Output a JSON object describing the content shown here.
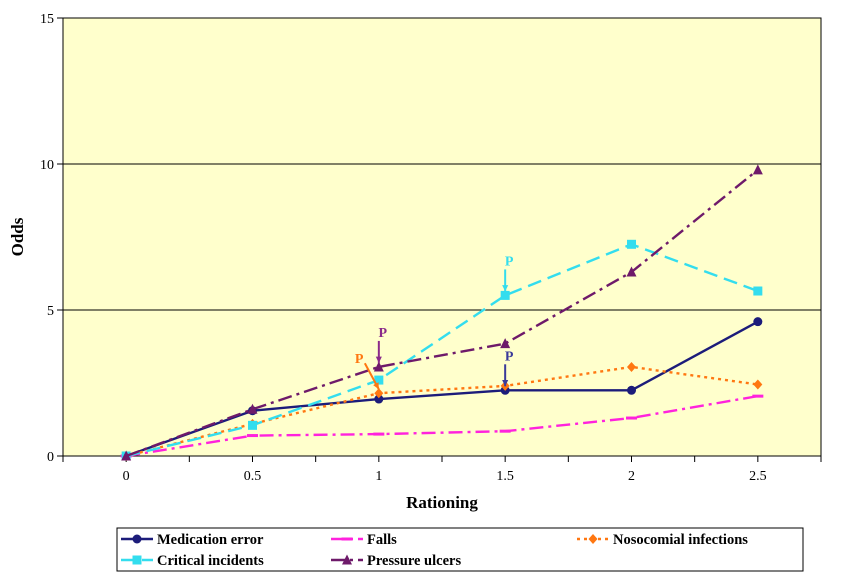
{
  "chart_data": {
    "type": "line",
    "title": "",
    "xlabel": "Rationing",
    "ylabel": "Odds",
    "x": [
      0,
      0.5,
      1,
      1.5,
      2,
      2.5
    ],
    "xlim": [
      -0.25,
      2.75
    ],
    "ylim": [
      0,
      15
    ],
    "xticks": [
      "0",
      "0.5",
      "1",
      "1.5",
      "2",
      "2.5"
    ],
    "yticks": [
      "0",
      "5",
      "10",
      "15"
    ],
    "grid": "horizontal",
    "legend_position": "bottom",
    "series": [
      {
        "name": "Medication error",
        "values": [
          0,
          1.55,
          1.95,
          2.25,
          2.25,
          4.6
        ],
        "color": "#1c1c7a",
        "dash": "solid",
        "marker": "circle"
      },
      {
        "name": "Falls",
        "values": [
          0,
          0.7,
          0.75,
          0.85,
          1.3,
          2.05
        ],
        "color": "#ff22dd",
        "dash": "dashdot",
        "marker": "dash"
      },
      {
        "name": "Nosocomial infections",
        "values": [
          0,
          1.1,
          2.15,
          2.4,
          3.05,
          2.45
        ],
        "color": "#ff7711",
        "dash": "dot",
        "marker": "diamond"
      },
      {
        "name": "Critical incidents",
        "values": [
          0,
          1.05,
          2.6,
          5.5,
          7.25,
          5.65
        ],
        "color": "#33ddee",
        "dash": "dash",
        "marker": "square"
      },
      {
        "name": "Pressure ulcers",
        "values": [
          0,
          1.6,
          3.05,
          3.85,
          6.3,
          9.8
        ],
        "color": "#6e1a6a",
        "dash": "dashdot",
        "marker": "triangle"
      }
    ],
    "annotations": [
      {
        "text": "P",
        "x": 1.5,
        "y": 5.5,
        "color": "#33ddee"
      },
      {
        "text": "P",
        "x": 1,
        "y": 3.05,
        "color": "#8a2a8a"
      },
      {
        "text": "P",
        "x": 1,
        "y": 2.15,
        "color": "#ff7711"
      },
      {
        "text": "P",
        "x": 1.5,
        "y": 2.25,
        "color": "#3a3a9a"
      }
    ]
  }
}
